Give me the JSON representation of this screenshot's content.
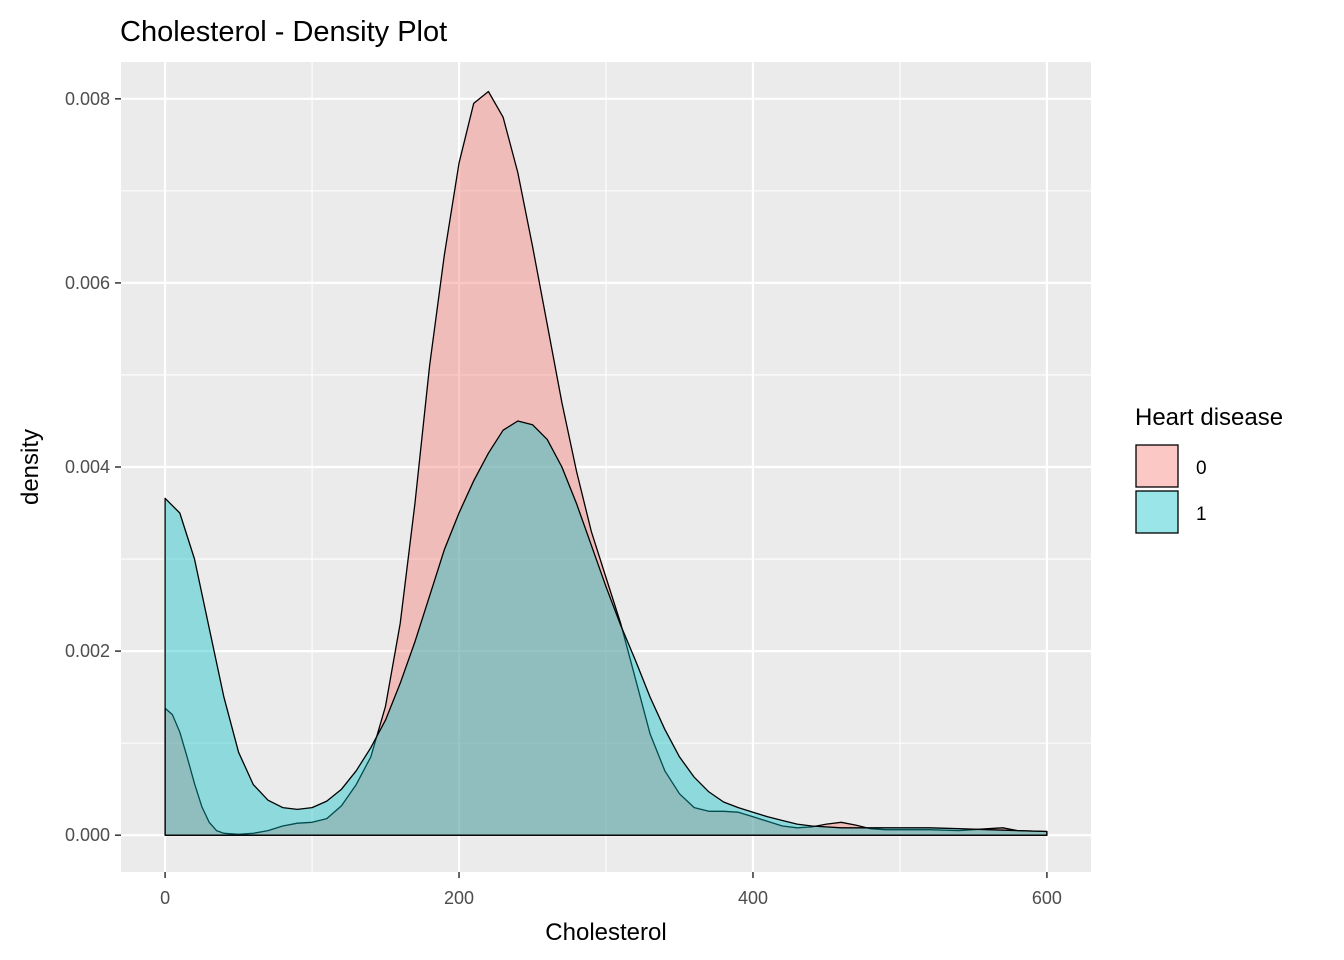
{
  "chart_data": {
    "type": "area",
    "title": "Cholesterol - Density Plot",
    "xlabel": "Cholesterol",
    "ylabel": "density",
    "xlim": [
      -30,
      630
    ],
    "ylim": [
      -0.0004,
      0.0084
    ],
    "x_ticks": [
      0,
      200,
      400,
      600
    ],
    "x_tick_labels": [
      "0",
      "200",
      "400",
      "600"
    ],
    "y_ticks": [
      0,
      0.002,
      0.004,
      0.006,
      0.008
    ],
    "y_tick_labels": [
      "0.000",
      "0.002",
      "0.004",
      "0.006",
      "0.008"
    ],
    "grid": true,
    "legend_title": "Heart disease",
    "legend_position": "right",
    "series": [
      {
        "name": "0",
        "color": "#F8766D",
        "points": [
          [
            0,
            0.00138
          ],
          [
            5,
            0.00131
          ],
          [
            10,
            0.00112
          ],
          [
            15,
            0.00085
          ],
          [
            20,
            0.00056
          ],
          [
            25,
            0.00031
          ],
          [
            30,
            0.00014
          ],
          [
            35,
            5e-05
          ],
          [
            40,
            2e-05
          ],
          [
            50,
            1e-05
          ],
          [
            60,
            2e-05
          ],
          [
            70,
            5e-05
          ],
          [
            80,
            0.0001
          ],
          [
            90,
            0.00013
          ],
          [
            100,
            0.00014
          ],
          [
            110,
            0.00018
          ],
          [
            120,
            0.00032
          ],
          [
            130,
            0.00055
          ],
          [
            140,
            0.00085
          ],
          [
            150,
            0.0014
          ],
          [
            160,
            0.0023
          ],
          [
            170,
            0.0036
          ],
          [
            180,
            0.0051
          ],
          [
            190,
            0.0063
          ],
          [
            200,
            0.0073
          ],
          [
            210,
            0.00795
          ],
          [
            220,
            0.00808
          ],
          [
            230,
            0.0078
          ],
          [
            240,
            0.0072
          ],
          [
            250,
            0.0064
          ],
          [
            260,
            0.00555
          ],
          [
            270,
            0.0047
          ],
          [
            280,
            0.00395
          ],
          [
            290,
            0.0033
          ],
          [
            300,
            0.0028
          ],
          [
            310,
            0.0023
          ],
          [
            320,
            0.0017
          ],
          [
            330,
            0.0011
          ],
          [
            340,
            0.0007
          ],
          [
            350,
            0.00045
          ],
          [
            360,
            0.0003
          ],
          [
            370,
            0.00026
          ],
          [
            380,
            0.00026
          ],
          [
            390,
            0.00025
          ],
          [
            400,
            0.0002
          ],
          [
            410,
            0.00015
          ],
          [
            420,
            0.0001
          ],
          [
            430,
            8e-05
          ],
          [
            440,
            9e-05
          ],
          [
            450,
            0.00012
          ],
          [
            460,
            0.00014
          ],
          [
            470,
            0.00011
          ],
          [
            480,
            7e-05
          ],
          [
            490,
            6e-05
          ],
          [
            500,
            6e-05
          ],
          [
            520,
            6e-05
          ],
          [
            540,
            5e-05
          ],
          [
            560,
            7e-05
          ],
          [
            570,
            8e-05
          ],
          [
            580,
            5e-05
          ],
          [
            600,
            4e-05
          ]
        ]
      },
      {
        "name": "1",
        "color": "#00BFC4",
        "points": [
          [
            0,
            0.00366
          ],
          [
            10,
            0.0035
          ],
          [
            20,
            0.003
          ],
          [
            30,
            0.00225
          ],
          [
            40,
            0.0015
          ],
          [
            50,
            0.0009
          ],
          [
            60,
            0.00055
          ],
          [
            70,
            0.00038
          ],
          [
            80,
            0.0003
          ],
          [
            90,
            0.00028
          ],
          [
            100,
            0.0003
          ],
          [
            110,
            0.00037
          ],
          [
            120,
            0.0005
          ],
          [
            130,
            0.0007
          ],
          [
            140,
            0.00095
          ],
          [
            150,
            0.00125
          ],
          [
            160,
            0.00165
          ],
          [
            170,
            0.0021
          ],
          [
            180,
            0.0026
          ],
          [
            190,
            0.0031
          ],
          [
            200,
            0.0035
          ],
          [
            210,
            0.00385
          ],
          [
            220,
            0.00415
          ],
          [
            230,
            0.0044
          ],
          [
            240,
            0.0045
          ],
          [
            250,
            0.00446
          ],
          [
            260,
            0.0043
          ],
          [
            270,
            0.004
          ],
          [
            280,
            0.0036
          ],
          [
            290,
            0.00315
          ],
          [
            300,
            0.0027
          ],
          [
            310,
            0.00228
          ],
          [
            320,
            0.0019
          ],
          [
            330,
            0.0015
          ],
          [
            340,
            0.00115
          ],
          [
            350,
            0.00085
          ],
          [
            360,
            0.00063
          ],
          [
            370,
            0.00047
          ],
          [
            380,
            0.00036
          ],
          [
            390,
            0.0003
          ],
          [
            400,
            0.00025
          ],
          [
            410,
            0.0002
          ],
          [
            420,
            0.00016
          ],
          [
            430,
            0.00012
          ],
          [
            440,
            0.0001
          ],
          [
            460,
            8e-05
          ],
          [
            480,
            8e-05
          ],
          [
            500,
            8e-05
          ],
          [
            520,
            8e-05
          ],
          [
            540,
            7e-05
          ],
          [
            560,
            6e-05
          ],
          [
            580,
            5e-05
          ],
          [
            600,
            4e-05
          ]
        ]
      }
    ]
  }
}
